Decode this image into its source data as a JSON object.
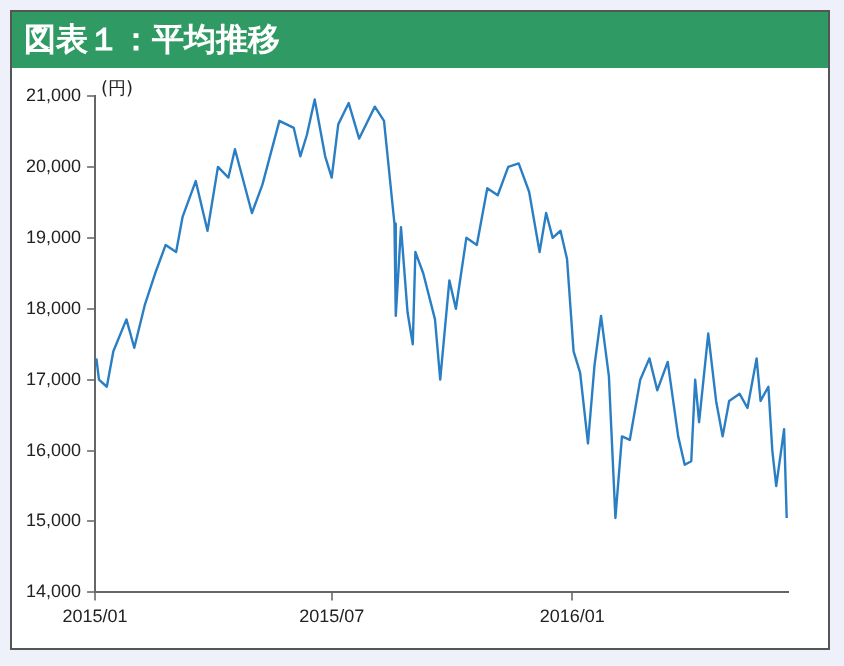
{
  "chart_data": {
    "type": "line",
    "title": "図表１：平均推移",
    "ylabel": "(円)",
    "x": [
      "2015-01-02",
      "2015-01-04",
      "2015-01-10",
      "2015-01-15",
      "2015-01-25",
      "2015-01-31",
      "2015-02-08",
      "2015-02-16",
      "2015-02-24",
      "2015-03-04",
      "2015-03-09",
      "2015-03-19",
      "2015-03-28",
      "2015-04-05",
      "2015-04-13",
      "2015-04-18",
      "2015-05-01",
      "2015-05-09",
      "2015-05-22",
      "2015-06-02",
      "2015-06-07",
      "2015-06-12",
      "2015-06-18",
      "2015-06-26",
      "2015-07-01",
      "2015-07-06",
      "2015-07-14",
      "2015-07-22",
      "2015-08-03",
      "2015-08-10",
      "2015-08-18",
      "2015-08-19",
      "2015-08-23",
      "2015-08-28",
      "2015-09-01",
      "2015-09-03",
      "2015-09-09",
      "2015-09-18",
      "2015-09-22",
      "2015-09-29",
      "2015-10-04",
      "2015-10-12",
      "2015-10-20",
      "2015-10-28",
      "2015-11-05",
      "2015-11-13",
      "2015-11-21",
      "2015-11-29",
      "2015-12-07",
      "2015-12-12",
      "2015-12-17",
      "2015-12-23",
      "2015-12-28",
      "2016-01-02",
      "2016-01-07",
      "2016-01-13",
      "2016-01-18",
      "2016-01-23",
      "2016-01-29",
      "2016-02-03",
      "2016-02-08",
      "2016-02-14",
      "2016-02-22",
      "2016-02-29",
      "2016-03-06",
      "2016-03-14",
      "2016-03-22",
      "2016-03-27",
      "2016-04-01",
      "2016-04-04",
      "2016-04-07",
      "2016-04-14",
      "2016-04-20",
      "2016-04-25",
      "2016-04-30",
      "2016-05-08",
      "2016-05-14",
      "2016-05-21",
      "2016-05-24",
      "2016-05-30",
      "2016-06-02",
      "2016-06-05",
      "2016-06-11",
      "2016-06-13"
    ],
    "series": [
      {
        "color": "#2a7fc4",
        "values": [
          17300,
          17000,
          16900,
          17400,
          17850,
          17450,
          18050,
          18500,
          18900,
          18800,
          19300,
          19800,
          19100,
          20000,
          19850,
          20250,
          19350,
          19750,
          20650,
          20550,
          20150,
          20450,
          20950,
          20150,
          19850,
          20600,
          20900,
          20400,
          20850,
          20650,
          19200,
          17900,
          19150,
          17950,
          17500,
          18800,
          18500,
          17850,
          17000,
          18400,
          18000,
          19000,
          18900,
          19700,
          19600,
          20000,
          20050,
          19650,
          18800,
          19350,
          19000,
          19100,
          18700,
          17400,
          17100,
          16100,
          17200,
          17900,
          17050,
          15050,
          16200,
          16150,
          17000,
          17300,
          16850,
          17250,
          16200,
          15800,
          15850,
          17000,
          16400,
          17650,
          16700,
          16200,
          16700,
          16800,
          16600,
          17300,
          16700,
          16900,
          16000,
          15500,
          16300,
          15050
        ]
      }
    ],
    "xlim": [
      "2015-01-01",
      "2016-06-14"
    ],
    "xticks": [
      {
        "value": "2015-01",
        "label": "2015/01"
      },
      {
        "value": "2015-07",
        "label": "2015/07"
      },
      {
        "value": "2016-01",
        "label": "2016/01"
      }
    ],
    "ylim": [
      14000,
      21000
    ],
    "yticks": [
      {
        "value": 14000,
        "label": "14,000"
      },
      {
        "value": 15000,
        "label": "15,000"
      },
      {
        "value": 16000,
        "label": "16,000"
      },
      {
        "value": 17000,
        "label": "17,000"
      },
      {
        "value": 18000,
        "label": "18,000"
      },
      {
        "value": 19000,
        "label": "19,000"
      },
      {
        "value": 20000,
        "label": "20,000"
      },
      {
        "value": 21000,
        "label": "21,000"
      }
    ],
    "grid": false,
    "legend": false,
    "marker": "none",
    "line_style": "solid"
  }
}
